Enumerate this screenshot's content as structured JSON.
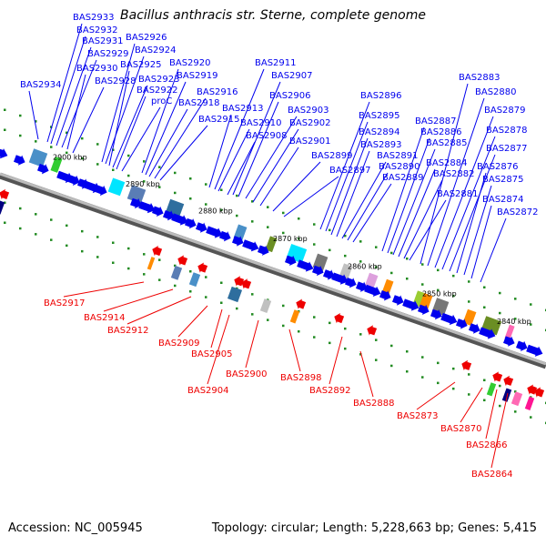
{
  "title": "Bacillus anthracis str. Sterne, complete genome",
  "footer": {
    "accession": "Accession: NC_005945",
    "topology": "Topology: circular; Length: 5,228,663 bp; Genes: 5,415"
  },
  "colors": {
    "forward": "#0000ee",
    "reverse": "#ee0000",
    "backbone": "#888888",
    "dots": "#228b22"
  },
  "scale_labels": [
    "2900 kbp",
    "2890 kbp",
    "2880 kbp",
    "2870 kbp",
    "2860 kbp",
    "2850 kbp",
    "2840 kbp"
  ],
  "forward_genes": [
    "BAS2934",
    "BAS2933",
    "BAS2932",
    "BAS2931",
    "BAS2929",
    "BAS2930",
    "BAS2928",
    "BAS2926",
    "BAS2924",
    "BAS2925",
    "BAS2923",
    "BAS2922",
    "proC",
    "BAS2920",
    "BAS2919",
    "BAS2918",
    "BAS2916",
    "BAS2915",
    "BAS2913",
    "BAS2911",
    "BAS2910",
    "BAS2907",
    "BAS2908",
    "BAS2906",
    "BAS2903",
    "BAS2902",
    "BAS2901",
    "BAS2899",
    "BAS2897",
    "BAS2896",
    "BAS2895",
    "BAS2894",
    "BAS2893",
    "BAS2891",
    "BAS2890",
    "BAS2889",
    "BAS2887",
    "BAS2886",
    "BAS2885",
    "BAS2884",
    "BAS2882",
    "BAS2881",
    "BAS2883",
    "BAS2880",
    "BAS2879",
    "BAS2878",
    "BAS2877",
    "BAS2876",
    "BAS2875",
    "BAS2874",
    "BAS2872"
  ],
  "reverse_genes": [
    "BAS2917",
    "BAS2914",
    "BAS2912",
    "BAS2909",
    "BAS2905",
    "BAS2904",
    "BAS2900",
    "BAS2898",
    "BAS2892",
    "BAS2888",
    "BAS2873",
    "BAS2870",
    "BAS2866",
    "BAS2864"
  ]
}
